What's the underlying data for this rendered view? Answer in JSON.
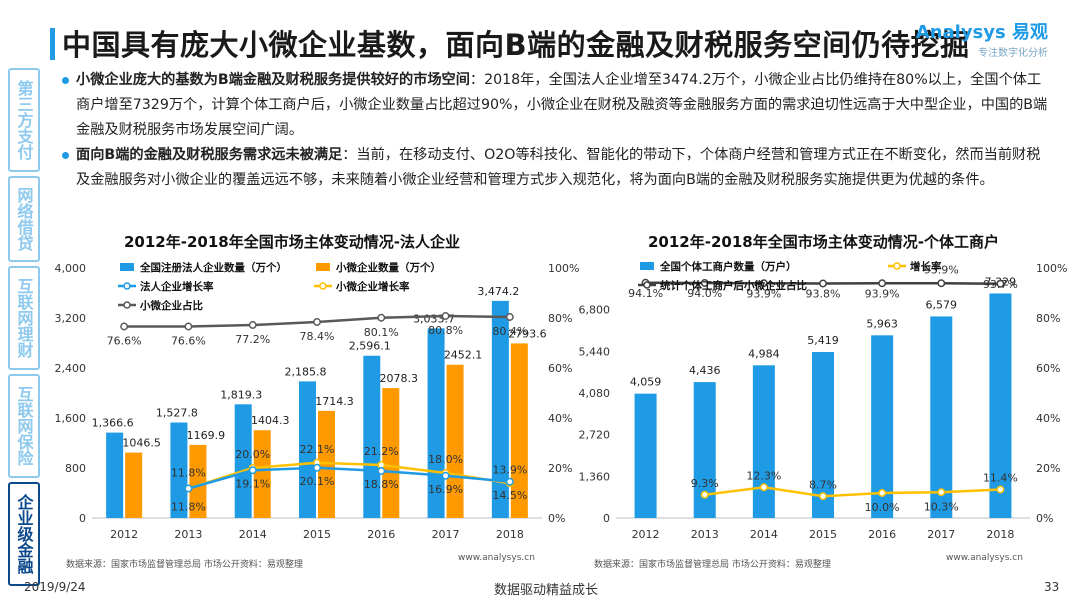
{
  "title": "中国具有庞大小微企业基数，面向B端的金融及财税服务空间仍待挖掘",
  "logo": {
    "main": "Analysys 易观",
    "sub": "专注数字化分析"
  },
  "sidebar": [
    {
      "label": "第三方支付",
      "active": false
    },
    {
      "label": "网络借贷",
      "active": false
    },
    {
      "label": "互联网理财",
      "active": false
    },
    {
      "label": "互联网保险",
      "active": false
    },
    {
      "label": "企业级金融",
      "active": true
    }
  ],
  "bullets": [
    {
      "bold": "小微企业庞大的基数为B端金融及财税服务提供较好的市场空间",
      "text": "：2018年，全国法人企业增至3474.2万个，小微企业占比仍维持在80%以上，全国个体工商户增至7329万个，计算个体工商户后，小微企业数量占比超过90%，小微企业在财税及融资等金融服务方面的需求迫切性远高于大中型企业，中国的B端金融及财税服务市场发展空间广阔。"
    },
    {
      "bold": "面向B端的金融及财税服务需求远未被满足",
      "text": "：当前，在移动支付、O2O等科技化、智能化的带动下，个体商户经营和管理方式正在不断变化，然而当前财税及金融服务对小微企业的覆盖远远不够，未来随着小微企业经营和管理方式步入规范化，将为面向B端的金融及财税服务实施提供更为优越的条件。"
    }
  ],
  "chart_data": [
    {
      "type": "bar",
      "title": "2012年-2018年全国市场主体变动情况-法人企业",
      "categories": [
        "2012",
        "2013",
        "2014",
        "2015",
        "2016",
        "2017",
        "2018"
      ],
      "ylim": [
        0,
        4000
      ],
      "y2lim": [
        0,
        100
      ],
      "yticks": [
        "0",
        "800",
        "1,600",
        "2,400",
        "3,200",
        "4,000"
      ],
      "y2ticks": [
        "0%",
        "20%",
        "40%",
        "60%",
        "80%",
        "100%"
      ],
      "legend": [
        "全国注册法人企业数量（万个）",
        "小微企业数量（万个）",
        "法人企业增长率",
        "小微企业增长率",
        "小微企业占比"
      ],
      "colors": {
        "enterprise": "#1f9be6",
        "small": "#ff9900",
        "growth": "#1f9be6",
        "small_growth": "#ffc000",
        "share": "#595959"
      },
      "series": [
        {
          "name": "全国注册法人企业数量（万个）",
          "values": [
            1366.6,
            1527.8,
            1819.3,
            2185.8,
            2596.1,
            3033.7,
            3474.2
          ],
          "labels": [
            "1,366.6",
            "1,527.8",
            "1,819.3",
            "2,185.8",
            "2,596.1",
            "3,033.7",
            "3,474.2"
          ]
        },
        {
          "name": "小微企业数量（万个）",
          "values": [
            1046.5,
            1169.9,
            1404.3,
            1714.3,
            2078.3,
            2452.1,
            2793.6
          ],
          "labels": [
            "1046.5",
            "1169.9",
            "1404.3",
            "1714.3",
            "2078.3",
            "2452.1",
            "2793.6"
          ]
        },
        {
          "name": "法人企业增长率",
          "values": [
            null,
            11.8,
            19.1,
            20.1,
            18.8,
            16.9,
            14.5
          ],
          "labels": [
            "",
            "11.8%",
            "19.1%",
            "20.1%",
            "18.8%",
            "16.9%",
            "14.5%"
          ]
        },
        {
          "name": "小微企业增长率",
          "values": [
            null,
            11.8,
            20.0,
            22.1,
            21.2,
            18.0,
            13.9
          ],
          "labels": [
            "",
            "11.8%",
            "20.0%",
            "22.1%",
            "21.2%",
            "18.0%",
            "13.9%"
          ]
        },
        {
          "name": "小微企业占比",
          "values": [
            76.6,
            76.6,
            77.2,
            78.4,
            80.1,
            80.8,
            80.4
          ],
          "labels": [
            "76.6%",
            "76.6%",
            "77.2%",
            "78.4%",
            "80.1%",
            "80.8%",
            "80.4%"
          ]
        }
      ],
      "source": "数据来源：国家市场监督管理总局 市场公开资料：易观整理",
      "url": "www.analysys.cn"
    },
    {
      "type": "bar",
      "title": "2012年-2018年全国市场主体变动情况-个体工商户",
      "categories": [
        "2012",
        "2013",
        "2014",
        "2015",
        "2016",
        "2017",
        "2018"
      ],
      "ylim": [
        0,
        8160
      ],
      "y2lim": [
        0,
        100
      ],
      "yticks": [
        "0",
        "1,360",
        "2,720",
        "4,080",
        "5,440",
        "6,800"
      ],
      "y2ticks": [
        "0%",
        "20%",
        "40%",
        "60%",
        "80%",
        "100%"
      ],
      "legend": [
        "全国个体工商户数量（万户）",
        "增长率",
        "统计个体工商户后小微企业占比"
      ],
      "colors": {
        "bar": "#1f9be6",
        "growth": "#ffc000",
        "share": "#404040"
      },
      "series": [
        {
          "name": "全国个体工商户数量（万户）",
          "values": [
            4059,
            4436,
            4984,
            5419,
            5963,
            6579,
            7329
          ],
          "labels": [
            "4,059",
            "4,436",
            "4,984",
            "5,419",
            "5,963",
            "6,579",
            "7,329"
          ]
        },
        {
          "name": "增长率",
          "values": [
            null,
            9.3,
            12.3,
            8.7,
            10.0,
            10.3,
            11.4
          ],
          "labels": [
            "",
            "9.3%",
            "12.3%",
            "8.7%",
            "10.0%",
            "10.3%",
            "11.4%"
          ]
        },
        {
          "name": "统计个体工商户后小微企业占比",
          "values": [
            94.1,
            94.0,
            93.9,
            93.8,
            93.9,
            93.9,
            93.7
          ],
          "labels": [
            "94.1%",
            "94.0%",
            "93.9%",
            "93.8%",
            "93.9%",
            "93.9%",
            "93.7%"
          ]
        }
      ],
      "source": "数据来源：国家市场监督管理总局 市场公开资料：易观整理",
      "url": "www.analysys.cn"
    }
  ],
  "footer": {
    "date": "2019/9/24",
    "slogan": "数据驱动精益成长",
    "page": "33"
  }
}
